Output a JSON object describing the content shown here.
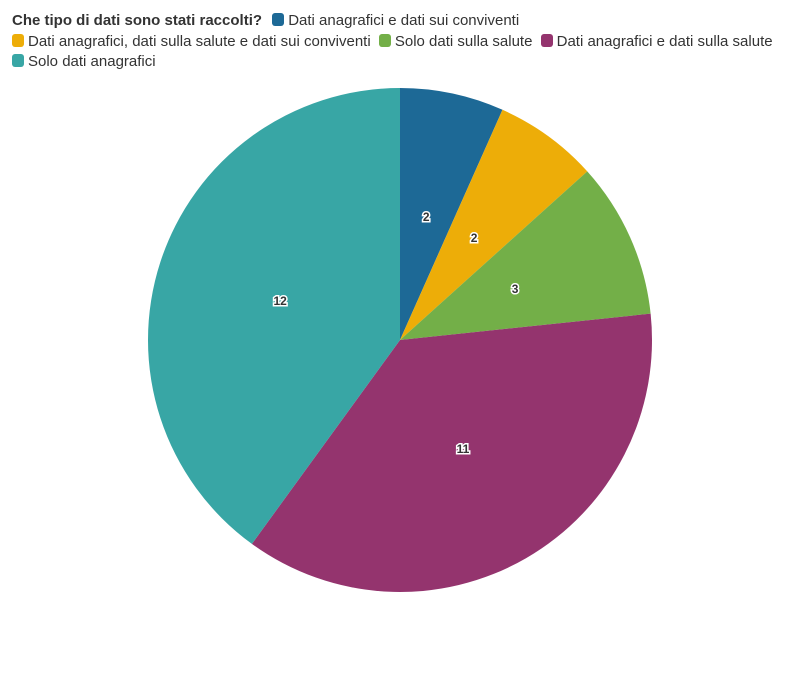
{
  "chart_data": {
    "type": "pie",
    "title": "Che tipo di dati sono stati raccolti?",
    "legend_position": "top-left",
    "categories": [
      "Dati anagrafici e dati sui conviventi",
      "Dati anagrafici, dati sulla salute e dati sui conviventi",
      "Solo dati sulla salute",
      "Dati anagrafici e dati sulla salute",
      "Solo dati anagrafici"
    ],
    "values": [
      2,
      2,
      3,
      11,
      12
    ],
    "colors": [
      "#1d6996",
      "#edad08",
      "#73af48",
      "#94346e",
      "#38a6a5"
    ]
  }
}
